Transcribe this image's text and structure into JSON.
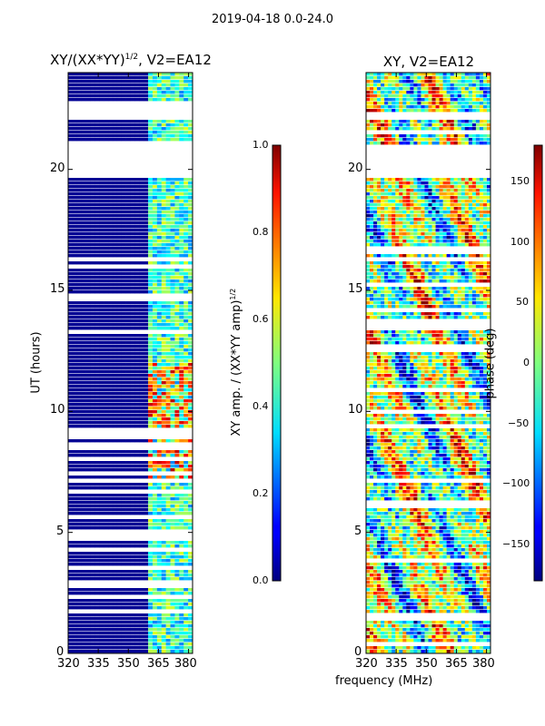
{
  "chart_data": [
    {
      "type": "heatmap",
      "title": "XY/(XX*YY)^1/2, V2=EA12",
      "title_main": "XY/(XX*YY)",
      "title_sup": "1/2",
      "title_rest": ", V2=EA12",
      "xlabel": "",
      "ylabel": "UT (hours)",
      "xlim": [
        320,
        382
      ],
      "ylim": [
        0,
        24
      ],
      "xticks": [
        "320",
        "335",
        "350",
        "365",
        "380"
      ],
      "yticks": [
        "0",
        "5",
        "10",
        "15",
        "20"
      ],
      "colorbar": {
        "label": "XY amp. / (XX*YY amp)^1/2",
        "label_main": "XY amp. / (XX*YY amp)",
        "label_sup": "1/2",
        "range": [
          0.0,
          1.0
        ],
        "ticks": [
          "0.0",
          "0.2",
          "0.4",
          "0.6",
          "0.8",
          "1.0"
        ]
      },
      "active_band_mhz": [
        360,
        382
      ],
      "bright_segment_hours": [
        7,
        12
      ],
      "gaps_hours": [
        [
          19.6,
          21.0
        ],
        [
          22.0,
          22.8
        ]
      ]
    },
    {
      "type": "heatmap",
      "title": "XY, V2=EA12",
      "xlabel": "frequency (MHz)",
      "ylabel": "",
      "xlim": [
        320,
        382
      ],
      "ylim": [
        0,
        24
      ],
      "xticks": [
        "320",
        "335",
        "350",
        "365",
        "380"
      ],
      "yticks": [
        "0",
        "5",
        "10",
        "15",
        "20"
      ],
      "colorbar": {
        "label": "phase (deg)",
        "range": [
          -180,
          180
        ],
        "ticks": [
          "150",
          "100",
          "50",
          "0",
          "−50",
          "−100",
          "−150"
        ]
      },
      "gaps_hours": [
        [
          19.6,
          21.0
        ],
        [
          6.0,
          6.3
        ]
      ]
    }
  ],
  "suptitle": "2019-04-18 0.0-24.0"
}
